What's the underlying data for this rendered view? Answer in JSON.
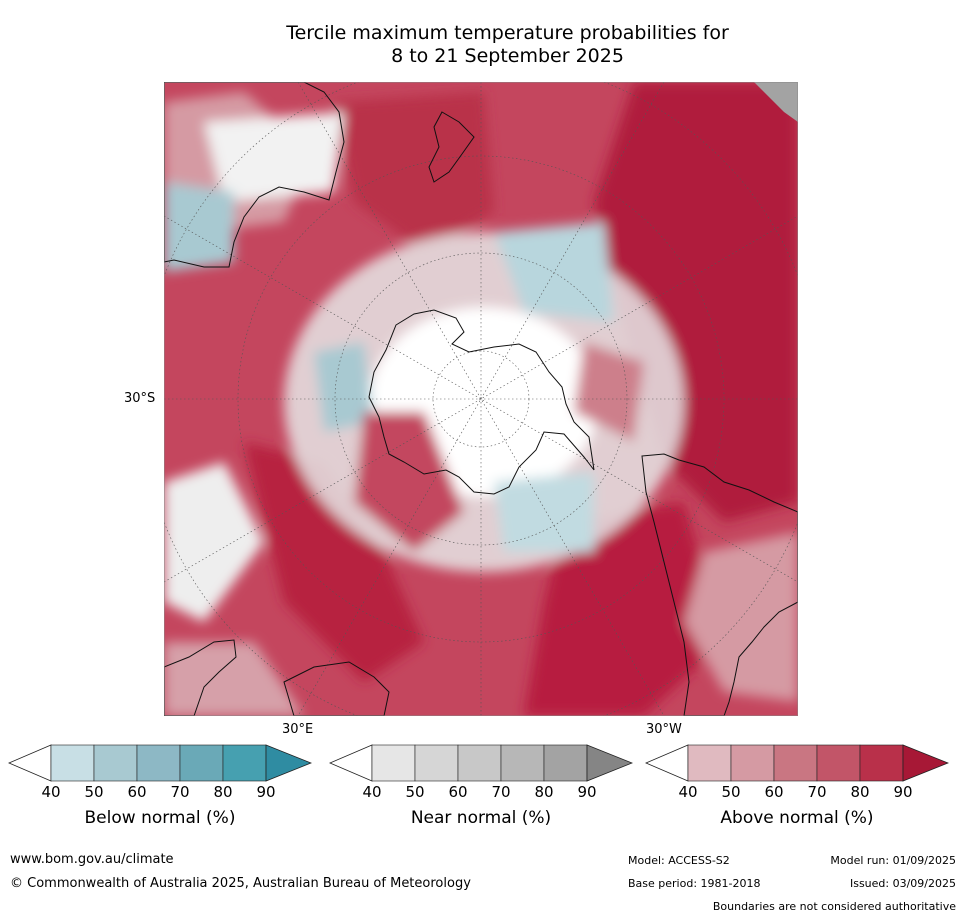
{
  "title_line1": "Tercile maximum temperature probabilities for",
  "title_line2": "8 to 21 September 2025",
  "map": {
    "lat_label": "30°S",
    "lon_label_east": "30°E",
    "lon_label_west": "30°W",
    "colors": {
      "above": [
        "#e0bac0",
        "#d59aa3",
        "#c97682",
        "#c25568",
        "#b9304a",
        "#a71836"
      ],
      "near": [
        "#e6e6e6",
        "#d6d6d6",
        "#c8c8c8",
        "#b7b7b7",
        "#a3a3a3",
        "#8a8a8a"
      ],
      "below": [
        "#c8dfe5",
        "#a8c9d1",
        "#8db8c5",
        "#6aa9b7",
        "#46a0b0",
        "#2f8ca2"
      ]
    }
  },
  "colorbars": [
    {
      "label": "Below normal (%)",
      "ticks": [
        "40",
        "50",
        "60",
        "70",
        "80",
        "90"
      ],
      "colors": [
        "#ffffff",
        "#c8dfe5",
        "#a8c9d1",
        "#8db8c5",
        "#6aa9b7",
        "#46a0b0",
        "#2f8ca2"
      ]
    },
    {
      "label": "Near normal (%)",
      "ticks": [
        "40",
        "50",
        "60",
        "70",
        "80",
        "90"
      ],
      "colors": [
        "#ffffff",
        "#e6e6e6",
        "#d6d6d6",
        "#c8c8c8",
        "#b7b7b7",
        "#a3a3a3",
        "#858585"
      ]
    },
    {
      "label": "Above normal (%)",
      "ticks": [
        "40",
        "50",
        "60",
        "70",
        "80",
        "90"
      ],
      "colors": [
        "#ffffff",
        "#e0bac0",
        "#d59aa3",
        "#c97682",
        "#c25568",
        "#b9304a",
        "#a71836"
      ]
    }
  ],
  "footer": {
    "website": "www.bom.gov.au/climate",
    "copyright": "© Commonwealth of Australia 2025, Australian Bureau of Meteorology",
    "model": "Model: ACCESS-S2",
    "base_period": "Base period: 1981-2018",
    "model_run": "Model run: 01/09/2025",
    "issued": "Issued: 03/09/2025",
    "disclaimer": "Boundaries are not considered authoritative"
  }
}
